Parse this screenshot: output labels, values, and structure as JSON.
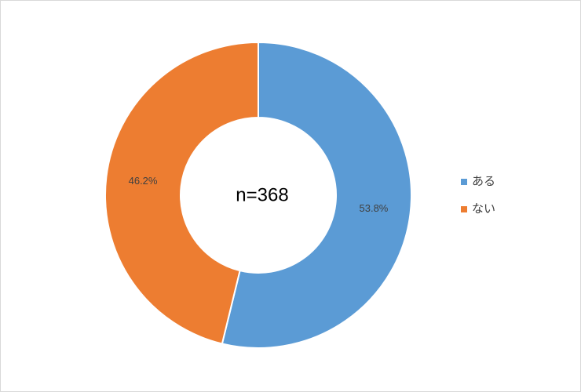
{
  "chart_data": {
    "type": "donut",
    "center_label": "n=368",
    "categories": [
      "ある",
      "ない"
    ],
    "values": [
      53.8,
      46.2
    ],
    "value_labels": [
      "53.8%",
      "46.2%"
    ],
    "colors": [
      "#5b9bd5",
      "#ed7d31"
    ],
    "legend": "right"
  }
}
